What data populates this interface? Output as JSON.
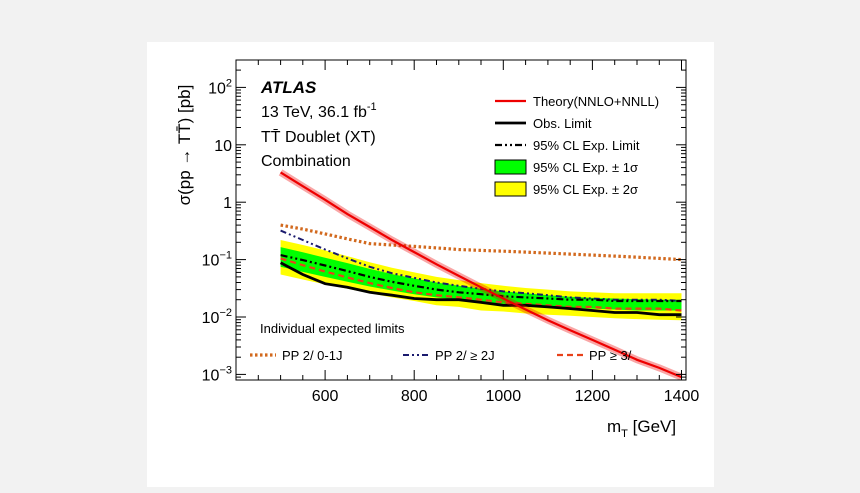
{
  "chart_data": {
    "type": "line",
    "xscale": "linear",
    "yscale": "log",
    "xlim": [
      400,
      1410
    ],
    "ylim": [
      0.0008,
      300
    ],
    "xlabel": {
      "main": "m",
      "sub": "T",
      "unit": " [GeV]"
    },
    "ylabel": "σ(pp → TT̄) [pb]",
    "x_ticks": [
      {
        "value": 600,
        "label": "600"
      },
      {
        "value": 800,
        "label": "800"
      },
      {
        "value": 1000,
        "label": "1000"
      },
      {
        "value": 1200,
        "label": "1200"
      },
      {
        "value": 1400,
        "label": "1400"
      }
    ],
    "y_ticks": [
      {
        "value": 100,
        "base": "10",
        "exp": "2"
      },
      {
        "value": 10,
        "base": "10",
        "exp": ""
      },
      {
        "value": 1,
        "base": "1",
        "exp": ""
      },
      {
        "value": 0.1,
        "base": "10",
        "exp": "−1"
      },
      {
        "value": 0.01,
        "base": "10",
        "exp": "−2"
      },
      {
        "value": 0.001,
        "base": "10",
        "exp": "−3"
      }
    ],
    "annotations": {
      "experiment": "ATLAS",
      "energy_main": "13 TeV, 36.1 fb",
      "energy_exp": "-1",
      "model": "TT̄ Doublet (XT)",
      "analysis": "Combination",
      "individual_title": "Individual expected limits"
    },
    "x": [
      500,
      550,
      600,
      650,
      700,
      750,
      800,
      850,
      900,
      950,
      1000,
      1050,
      1100,
      1150,
      1200,
      1250,
      1300,
      1350,
      1400
    ],
    "band_2sigma": {
      "name": "95% CL Exp. ± 2σ",
      "color": "#ffff00",
      "low": [
        0.055,
        0.045,
        0.037,
        0.031,
        0.026,
        0.022,
        0.019,
        0.016,
        0.015,
        0.013,
        0.0125,
        0.0115,
        0.011,
        0.0105,
        0.01,
        0.0095,
        0.0092,
        0.009,
        0.0088
      ],
      "high": [
        0.22,
        0.18,
        0.145,
        0.115,
        0.09,
        0.072,
        0.06,
        0.05,
        0.044,
        0.039,
        0.035,
        0.032,
        0.03,
        0.028,
        0.027,
        0.026,
        0.026,
        0.026,
        0.026
      ]
    },
    "band_1sigma": {
      "name": "95% CL Exp. ± 1σ",
      "color": "#00ff00",
      "low": [
        0.075,
        0.061,
        0.05,
        0.041,
        0.034,
        0.029,
        0.025,
        0.022,
        0.02,
        0.018,
        0.017,
        0.016,
        0.015,
        0.0145,
        0.014,
        0.0135,
        0.013,
        0.013,
        0.013
      ],
      "high": [
        0.165,
        0.134,
        0.108,
        0.087,
        0.069,
        0.056,
        0.047,
        0.04,
        0.035,
        0.031,
        0.028,
        0.026,
        0.024,
        0.0225,
        0.0215,
        0.021,
        0.0205,
        0.02,
        0.02
      ]
    },
    "series": [
      {
        "name": "Theory(NNLO+NNLL)",
        "color": "#ee0000",
        "style": "theory",
        "values": [
          3.3,
          1.9,
          1.1,
          0.62,
          0.37,
          0.22,
          0.135,
          0.083,
          0.052,
          0.033,
          0.021,
          0.0135,
          0.0088,
          0.0059,
          0.004,
          0.0027,
          0.0018,
          0.0013,
          0.0009
        ]
      },
      {
        "name": "Obs. Limit",
        "color": "#000000",
        "style": "obs",
        "values": [
          0.088,
          0.055,
          0.038,
          0.033,
          0.027,
          0.024,
          0.021,
          0.02,
          0.02,
          0.018,
          0.016,
          0.016,
          0.015,
          0.014,
          0.013,
          0.012,
          0.012,
          0.011,
          0.011
        ]
      },
      {
        "name": "95% CL Exp. Limit",
        "color": "#000000",
        "style": "exp",
        "values": [
          0.12,
          0.098,
          0.079,
          0.063,
          0.05,
          0.041,
          0.035,
          0.03,
          0.027,
          0.025,
          0.023,
          0.022,
          0.021,
          0.02,
          0.02,
          0.019,
          0.019,
          0.019,
          0.019
        ]
      },
      {
        "name": "PP 2/ 0-1J",
        "color": "#d2691e",
        "style": "orangedot",
        "values": [
          0.4,
          0.34,
          0.28,
          0.23,
          0.19,
          0.18,
          0.17,
          0.16,
          0.15,
          0.145,
          0.14,
          0.135,
          0.13,
          0.125,
          0.12,
          0.115,
          0.11,
          0.105,
          0.1
        ]
      },
      {
        "name": "PP 2/ ≥ 2J",
        "color": "#1a1a6e",
        "style": "navy",
        "values": [
          0.32,
          0.22,
          0.15,
          0.105,
          0.075,
          0.058,
          0.048,
          0.04,
          0.035,
          0.031,
          0.028,
          0.026,
          0.024,
          0.022,
          0.021,
          0.02,
          0.02,
          0.02,
          0.019
        ]
      },
      {
        "name": "PP ≥ 3/",
        "color": "#e8411a",
        "style": "reddash",
        "values": [
          0.105,
          0.08,
          0.062,
          0.049,
          0.039,
          0.032,
          0.027,
          0.024,
          0.022,
          0.02,
          0.018,
          0.017,
          0.016,
          0.015,
          0.015,
          0.014,
          0.014,
          0.014,
          0.013
        ]
      }
    ],
    "legend_main": [
      {
        "label": "Theory(NNLO+NNLL)",
        "kind": "theory"
      },
      {
        "label": "Obs. Limit",
        "kind": "obs"
      },
      {
        "label": "95% CL Exp. Limit",
        "kind": "exp"
      },
      {
        "label": "95% CL Exp. ± 1σ",
        "kind": "band1"
      },
      {
        "label": "95% CL Exp. ± 2σ",
        "kind": "band2"
      }
    ],
    "legend_individual": [
      {
        "label": "PP 2/ 0-1J",
        "kind": "orangedot"
      },
      {
        "label": "PP 2/ ≥ 2J",
        "kind": "navy"
      },
      {
        "label": "PP ≥ 3/",
        "kind": "reddash"
      }
    ]
  }
}
